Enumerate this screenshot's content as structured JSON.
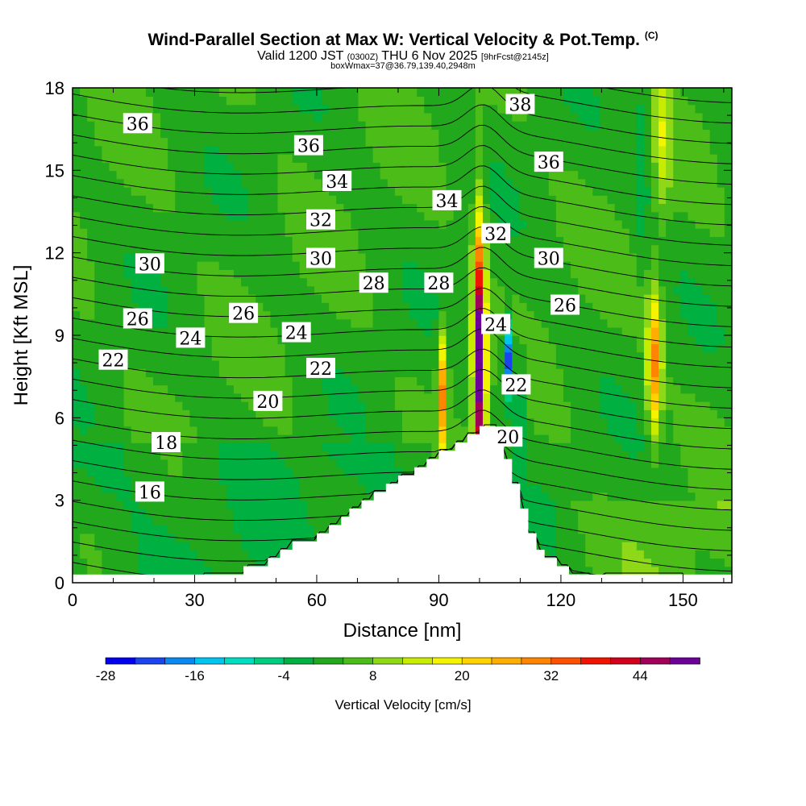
{
  "header": {
    "title": "Wind-Parallel Section at Max W: Vertical Velocity & Pot.Temp.",
    "copyright": "(C)",
    "valid_prefix": "Valid 1200 JST",
    "valid_utc": "(0300Z)",
    "valid_date": "THU 6 Nov 2025",
    "forecast": "[9hrFcst@2145z]",
    "box_info": "boxWmax=37@36.79,139.40,2948m"
  },
  "chart_data": {
    "type": "heatmap",
    "title": "Wind-Parallel Section at Max W: Vertical Velocity & Pot.Temp.",
    "xlabel": "Distance [nm]",
    "ylabel": "Height [Kft MSL]",
    "xlim": [
      0,
      162
    ],
    "ylim": [
      0,
      18
    ],
    "x_ticks": [
      "0",
      "30",
      "60",
      "90",
      "120",
      "150"
    ],
    "y_ticks": [
      "0",
      "3",
      "6",
      "9",
      "12",
      "15",
      "18"
    ],
    "terrain": [
      [
        32,
        0
      ],
      [
        32,
        0.3
      ],
      [
        42,
        0.3
      ],
      [
        42,
        0.6
      ],
      [
        48,
        0.6
      ],
      [
        48,
        0.9
      ],
      [
        51,
        0.9
      ],
      [
        51,
        1.2
      ],
      [
        54,
        1.2
      ],
      [
        54,
        1.5
      ],
      [
        60,
        1.5
      ],
      [
        60,
        1.8
      ],
      [
        63,
        1.8
      ],
      [
        63,
        2.1
      ],
      [
        66,
        2.1
      ],
      [
        66,
        2.4
      ],
      [
        68,
        2.4
      ],
      [
        68,
        2.7
      ],
      [
        71,
        2.7
      ],
      [
        71,
        3
      ],
      [
        74,
        3
      ],
      [
        74,
        3.3
      ],
      [
        77,
        3.3
      ],
      [
        77,
        3.6
      ],
      [
        80,
        3.6
      ],
      [
        80,
        3.9
      ],
      [
        84,
        3.9
      ],
      [
        84,
        4.2
      ],
      [
        87,
        4.2
      ],
      [
        87,
        4.5
      ],
      [
        90,
        4.5
      ],
      [
        90,
        4.8
      ],
      [
        94,
        4.8
      ],
      [
        94,
        5.1
      ],
      [
        97,
        5.1
      ],
      [
        97,
        5.4
      ],
      [
        100,
        5.4
      ],
      [
        100,
        5.7
      ],
      [
        104,
        5.7
      ],
      [
        104,
        5.1
      ],
      [
        106,
        5.1
      ],
      [
        106,
        4.5
      ],
      [
        108,
        4.5
      ],
      [
        108,
        3.6
      ],
      [
        110,
        3.6
      ],
      [
        110,
        2.7
      ],
      [
        112,
        2.7
      ],
      [
        112,
        1.8
      ],
      [
        114,
        1.8
      ],
      [
        114,
        1.2
      ],
      [
        116,
        1.2
      ],
      [
        116,
        0.9
      ],
      [
        119,
        0.9
      ],
      [
        119,
        0.6
      ],
      [
        122,
        0.6
      ],
      [
        122,
        0.3
      ],
      [
        127,
        0.3
      ],
      [
        127,
        0
      ],
      [
        130,
        0
      ],
      [
        130,
        0.3
      ],
      [
        150,
        0.3
      ],
      [
        150,
        0
      ]
    ],
    "w_features": [
      {
        "x": 100,
        "y": 8.0,
        "peak": 50
      },
      {
        "x": 91,
        "y": 7.0,
        "peak": 26
      },
      {
        "x": 143,
        "y": 8.0,
        "peak": 26
      },
      {
        "x": 107,
        "y": 8.2,
        "peak": -28
      },
      {
        "x": 110,
        "y": 6.5,
        "peak": -10
      },
      {
        "x": 140,
        "y": 15.5,
        "peak": -8
      },
      {
        "x": 145,
        "y": 16.5,
        "peak": 10
      }
    ],
    "theta_contour_labels": [
      {
        "text": "36",
        "x": 16,
        "y": 16.7
      },
      {
        "text": "36",
        "x": 58,
        "y": 15.9
      },
      {
        "text": "38",
        "x": 110,
        "y": 17.4
      },
      {
        "text": "36",
        "x": 117,
        "y": 15.3
      },
      {
        "text": "34",
        "x": 65,
        "y": 14.6
      },
      {
        "text": "34",
        "x": 92,
        "y": 13.9
      },
      {
        "text": "32",
        "x": 61,
        "y": 13.2
      },
      {
        "text": "32",
        "x": 104,
        "y": 12.7
      },
      {
        "text": "30",
        "x": 19,
        "y": 11.6
      },
      {
        "text": "30",
        "x": 61,
        "y": 11.8
      },
      {
        "text": "30",
        "x": 117,
        "y": 11.8
      },
      {
        "text": "28",
        "x": 74,
        "y": 10.9
      },
      {
        "text": "28",
        "x": 90,
        "y": 10.9
      },
      {
        "text": "26",
        "x": 16,
        "y": 9.6
      },
      {
        "text": "26",
        "x": 42,
        "y": 9.8
      },
      {
        "text": "26",
        "x": 121,
        "y": 10.1
      },
      {
        "text": "24",
        "x": 29,
        "y": 8.9
      },
      {
        "text": "24",
        "x": 55,
        "y": 9.1
      },
      {
        "text": "24",
        "x": 104,
        "y": 9.4
      },
      {
        "text": "22",
        "x": 10,
        "y": 8.1
      },
      {
        "text": "22",
        "x": 61,
        "y": 7.8
      },
      {
        "text": "22",
        "x": 109,
        "y": 7.2
      },
      {
        "text": "20",
        "x": 48,
        "y": 6.6
      },
      {
        "text": "20",
        "x": 107,
        "y": 5.3
      },
      {
        "text": "18",
        "x": 23,
        "y": 5.1
      },
      {
        "text": "16",
        "x": 19,
        "y": 3.3
      }
    ],
    "colorbar": {
      "label": "Vertical Velocity [cm/s]",
      "min": -28,
      "step": 4,
      "max": 52,
      "tick_labels": [
        "-28",
        "-16",
        "-4",
        "8",
        "20",
        "32",
        "44"
      ],
      "colors": [
        "#0000ee",
        "#1a44ee",
        "#0a88f0",
        "#00c4f0",
        "#00dcc0",
        "#00cc80",
        "#00b040",
        "#22a81c",
        "#4cbc18",
        "#8ed818",
        "#c8ec00",
        "#f4f400",
        "#ffd200",
        "#ffae00",
        "#ff8400",
        "#ff5000",
        "#f01400",
        "#d0001c",
        "#a00058",
        "#6c0098"
      ]
    }
  }
}
